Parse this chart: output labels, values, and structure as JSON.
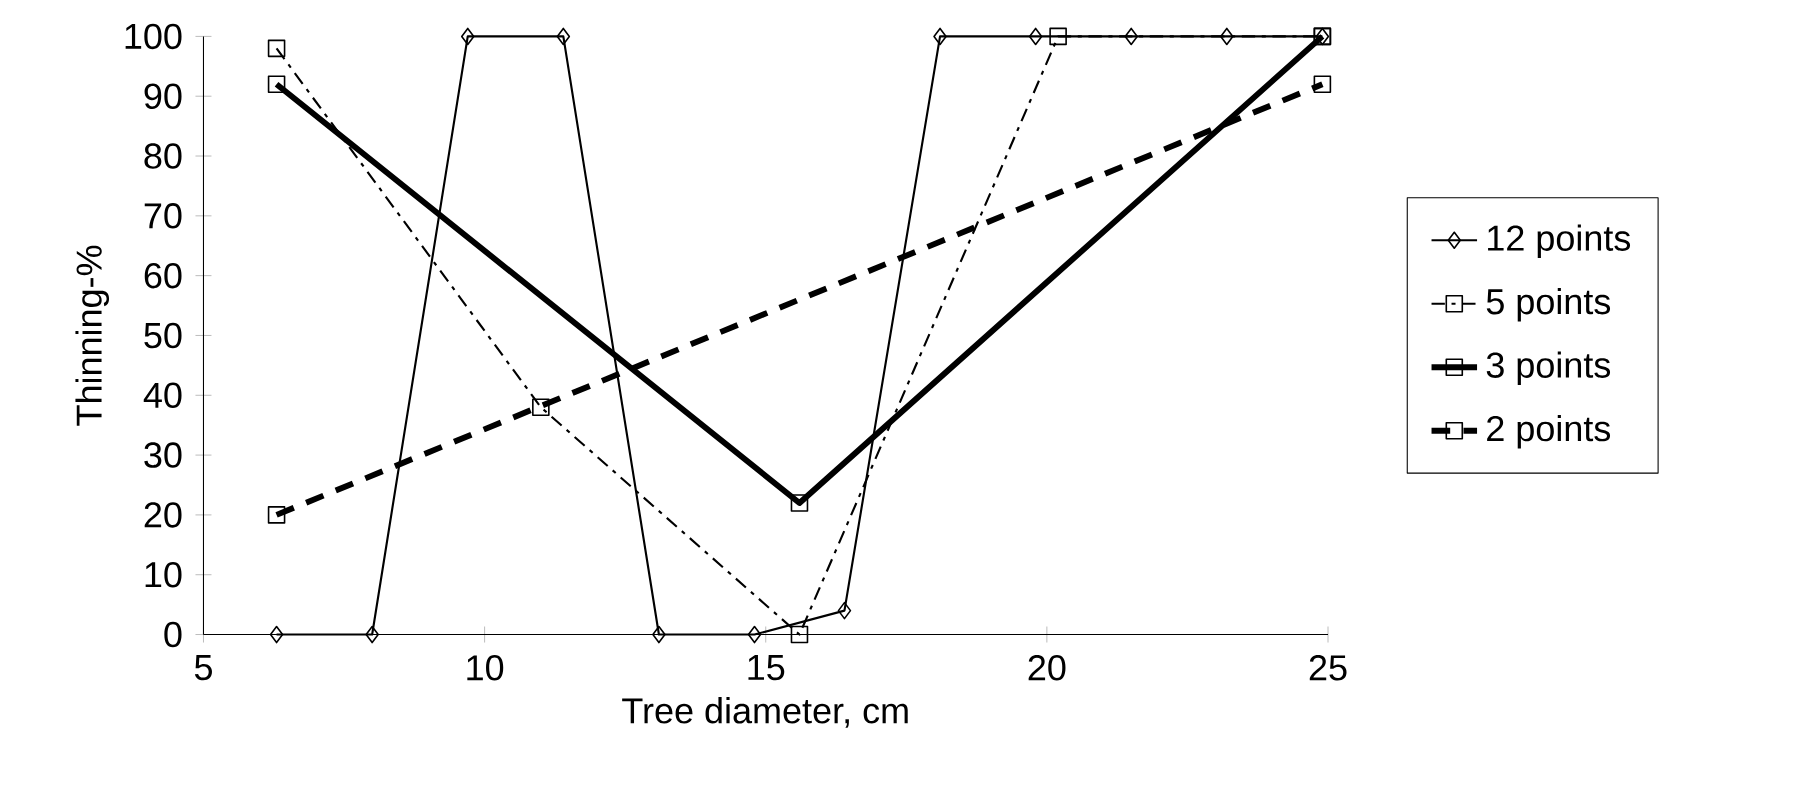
{
  "chart_data": {
    "type": "line",
    "xlabel": "Tree diameter, cm",
    "ylabel": "Thinning-%",
    "xlim": [
      5,
      25
    ],
    "xticks": [
      5,
      10,
      15,
      20,
      25
    ],
    "ylim": [
      0,
      100
    ],
    "yticks": [
      0,
      10,
      20,
      30,
      40,
      50,
      60,
      70,
      80,
      90,
      100
    ],
    "grid": false,
    "legend": "right",
    "series": [
      {
        "name": "12 points",
        "color": "#000000",
        "marker": "diamond",
        "line_style": "solid",
        "x": [
          6.3,
          8.0,
          9.7,
          11.4,
          13.1,
          14.8,
          16.4,
          18.1,
          19.8,
          21.5,
          23.2,
          24.9
        ],
        "values": [
          0,
          0,
          100,
          100,
          0,
          0,
          4,
          100,
          100,
          100,
          100,
          100
        ]
      },
      {
        "name": "5 points",
        "color": "#000000",
        "marker": "square",
        "line_style": "dashdot",
        "x": [
          6.3,
          11.0,
          15.6,
          20.2,
          24.9
        ],
        "values": [
          98,
          38,
          0,
          100,
          100
        ]
      },
      {
        "name": "3 points",
        "color": "#000000",
        "marker": "square",
        "line_style": "solid",
        "x": [
          6.3,
          15.6,
          24.9
        ],
        "values": [
          92,
          22,
          100
        ]
      },
      {
        "name": "2 points",
        "color": "#000000",
        "marker": "square",
        "line_style": "dashed",
        "x": [
          6.3,
          24.9
        ],
        "values": [
          20,
          92
        ]
      }
    ]
  }
}
